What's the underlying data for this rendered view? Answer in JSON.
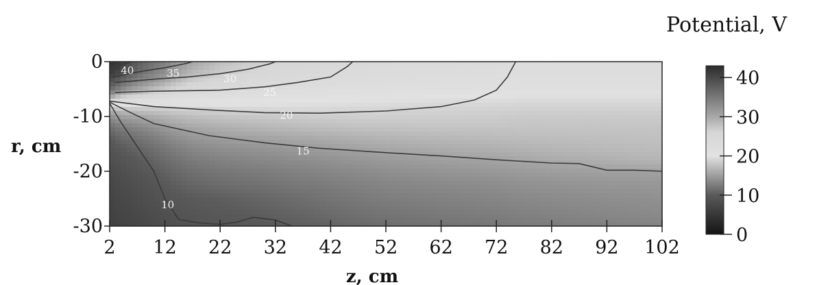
{
  "chart_data": {
    "type": "heatmap",
    "title": "",
    "xlabel": "z, cm",
    "ylabel": "r, cm",
    "xlim": [
      2,
      102
    ],
    "ylim": [
      -30,
      0
    ],
    "x_ticks": [
      2,
      12,
      22,
      32,
      42,
      52,
      62,
      72,
      82,
      92,
      102
    ],
    "y_ticks": [
      0,
      -10,
      -20,
      -30
    ],
    "colorbar": {
      "title": "Potential, V",
      "ticks": [
        40,
        30,
        20,
        10,
        0
      ],
      "range": [
        0,
        43
      ],
      "colormap": [
        {
          "value": 0,
          "color": "#141414"
        },
        {
          "value": 10,
          "color": "#5a5a5a"
        },
        {
          "value": 20,
          "color": "#e2e2e2"
        },
        {
          "value": 26,
          "color": "#d6d6d6"
        },
        {
          "value": 30,
          "color": "#a8a8a8"
        },
        {
          "value": 43,
          "color": "#2b2b2b"
        }
      ]
    },
    "field": {
      "grid_z": [
        2,
        3,
        4,
        6,
        8,
        10,
        12,
        14,
        17,
        22,
        27,
        32,
        37,
        42,
        47,
        52,
        62,
        72,
        76,
        82,
        92,
        102
      ],
      "grid_r": [
        0,
        -1,
        -2,
        -3,
        -4,
        -5,
        -6,
        -7,
        -8,
        -9,
        -10,
        -12,
        -14,
        -16,
        -18,
        -20,
        -22,
        -25,
        -28,
        -30
      ],
      "values": [
        [
          42,
          42,
          41,
          39,
          37,
          35.5,
          34,
          32,
          30,
          28,
          27,
          26,
          25.5,
          25,
          24.5,
          24,
          23.5,
          23,
          22.5,
          22.5,
          22.5,
          22.5
        ],
        [
          41.5,
          41.5,
          40.5,
          38.5,
          36.5,
          35,
          33.5,
          31.5,
          29.5,
          27.5,
          26.5,
          25.5,
          25,
          24.5,
          24,
          23.5,
          23.2,
          22.8,
          22.5,
          22.5,
          22.5,
          22.5
        ],
        [
          41,
          41,
          39.5,
          37.5,
          35.5,
          34,
          32.5,
          30.5,
          28.5,
          27,
          26,
          25,
          24.5,
          24,
          23.5,
          23.2,
          22.8,
          22.5,
          22.3,
          22.3,
          22.3,
          22.3
        ],
        [
          40,
          39.5,
          38,
          36,
          34,
          32.5,
          31,
          29.5,
          27.5,
          26,
          25,
          24.5,
          24,
          23.5,
          23,
          22.8,
          22.4,
          22.1,
          22,
          22,
          22,
          22
        ],
        [
          38.5,
          37.5,
          36,
          34,
          32,
          30.5,
          29,
          27.5,
          26,
          25,
          24.2,
          23.6,
          23.2,
          22.9,
          22.6,
          22.3,
          22,
          21.8,
          21.7,
          21.7,
          21.7,
          21.7
        ],
        [
          36.5,
          35,
          33.5,
          31,
          29.5,
          28,
          27,
          26,
          25,
          24,
          23.3,
          22.8,
          22.4,
          22.1,
          21.9,
          21.7,
          21.5,
          21.3,
          21.2,
          21.2,
          21.2,
          21.2
        ],
        [
          33,
          31,
          29,
          27.5,
          26.5,
          25.5,
          24.8,
          24,
          23.2,
          22.5,
          22,
          21.7,
          21.4,
          21.1,
          20.9,
          20.7,
          20.5,
          20.2,
          20,
          20,
          20,
          20
        ],
        [
          27,
          25.5,
          24.5,
          23.5,
          23,
          22.3,
          21.8,
          21.3,
          21,
          20.7,
          20.5,
          20.3,
          20.2,
          20.1,
          20,
          19.9,
          19.7,
          19.6,
          19.5,
          19.5,
          19.5,
          19.5
        ],
        [
          20,
          20,
          19.8,
          19.6,
          19.5,
          19.4,
          19.5,
          19.6,
          19.7,
          19.8,
          19.8,
          19.8,
          19.7,
          19.6,
          19.5,
          19.4,
          19.2,
          19.1,
          19,
          19,
          19,
          19
        ],
        [
          16,
          16.5,
          17,
          17.3,
          17.5,
          17.7,
          18,
          18.3,
          18.5,
          18.7,
          18.8,
          18.9,
          19,
          19,
          19,
          18.9,
          18.8,
          18.7,
          18.6,
          18.6,
          18.6,
          18.6
        ],
        [
          14,
          14.5,
          15,
          15.5,
          15.8,
          16.2,
          16.6,
          17,
          17.4,
          17.8,
          18,
          18.2,
          18.4,
          18.5,
          18.6,
          18.6,
          18.5,
          18.4,
          18.3,
          18.3,
          18.3,
          18.3
        ],
        [
          11.5,
          12,
          12.5,
          13,
          13.5,
          14,
          14.6,
          15.2,
          15.7,
          16.2,
          16.6,
          16.9,
          17.2,
          17.4,
          17.6,
          17.7,
          17.8,
          17.8,
          17.8,
          17.8,
          17.8,
          17.8
        ],
        [
          10,
          10.5,
          11,
          11.5,
          12,
          12.5,
          13.2,
          13.8,
          14.4,
          14.9,
          15.2,
          15.5,
          15.8,
          16.1,
          16.4,
          16.6,
          16.9,
          17.1,
          17.2,
          17.3,
          17.4,
          17.5
        ],
        [
          9,
          9.4,
          9.9,
          10.5,
          11,
          11.5,
          12.1,
          12.7,
          13.3,
          13.8,
          14.1,
          14.4,
          14.7,
          15,
          15.3,
          15.6,
          16,
          16.3,
          16.5,
          16.7,
          17,
          17.2
        ],
        [
          8.4,
          8.7,
          9.1,
          9.6,
          10.2,
          10.7,
          11.3,
          11.8,
          12.4,
          12.9,
          13.2,
          13.5,
          13.8,
          14.1,
          14.4,
          14.7,
          15.1,
          15.4,
          15.6,
          15.9,
          16.3,
          16.7
        ],
        [
          7.8,
          8.1,
          8.5,
          9,
          9.5,
          10,
          10.6,
          11.1,
          11.6,
          12.1,
          12.4,
          12.7,
          13,
          13.3,
          13.6,
          13.9,
          14.3,
          14.6,
          14.8,
          15,
          15.2,
          15.3
        ],
        [
          7.3,
          7.6,
          8,
          8.4,
          8.9,
          9.4,
          10,
          10.5,
          11,
          11.5,
          11.8,
          12.1,
          12.4,
          12.7,
          13,
          13.3,
          13.6,
          13.9,
          14.1,
          14.3,
          14.5,
          14.6
        ],
        [
          6.9,
          7.2,
          7.5,
          7.9,
          8.3,
          8.7,
          9.2,
          9.6,
          10,
          10.3,
          10.7,
          11.1,
          11.5,
          11.9,
          12.3,
          12.6,
          12.9,
          13.2,
          13.4,
          13.6,
          13.8,
          14
        ],
        [
          6.5,
          6.7,
          7,
          7.3,
          7.7,
          8.1,
          8.5,
          8.9,
          9.3,
          9.7,
          10,
          10.4,
          10.8,
          11.2,
          11.6,
          11.9,
          12.3,
          12.6,
          12.8,
          13,
          13.3,
          13.5
        ],
        [
          6.2,
          6.4,
          6.7,
          7,
          7.4,
          7.8,
          8.2,
          8.6,
          8.9,
          9.3,
          9.6,
          10,
          10.3,
          10.7,
          11.1,
          11.4,
          11.8,
          12.1,
          12.3,
          12.5,
          12.8,
          13
        ]
      ]
    },
    "contours": [
      {
        "level": "40",
        "points": [
          [
            2.5,
            -1.5
          ],
          [
            4,
            -0.6
          ],
          [
            6,
            0
          ]
        ]
      },
      {
        "level": "35",
        "points": [
          [
            2.5,
            -2.8
          ],
          [
            7,
            -1.9
          ],
          [
            12,
            -1.1
          ],
          [
            16,
            -0.3
          ],
          [
            17,
            0
          ]
        ]
      },
      {
        "level": "30",
        "points": [
          [
            3,
            -3.8
          ],
          [
            10,
            -3.2
          ],
          [
            16,
            -2.8
          ],
          [
            22,
            -2.2
          ],
          [
            27,
            -1.4
          ],
          [
            31,
            -0.4
          ],
          [
            32,
            0
          ]
        ]
      },
      {
        "level": "25",
        "points": [
          [
            3,
            -5.6
          ],
          [
            10,
            -5.4
          ],
          [
            16,
            -5.3
          ],
          [
            22,
            -5.2
          ],
          [
            30,
            -4.6
          ],
          [
            36,
            -3.8
          ],
          [
            42,
            -2.8
          ],
          [
            45,
            -0.9
          ],
          [
            46,
            0
          ]
        ]
      },
      {
        "level": "20",
        "points": [
          [
            2,
            -7.2
          ],
          [
            6,
            -7.7
          ],
          [
            10,
            -8.2
          ],
          [
            20,
            -8.8
          ],
          [
            30,
            -9.3
          ],
          [
            40,
            -9.4
          ],
          [
            52,
            -9
          ],
          [
            62,
            -8.2
          ],
          [
            68,
            -7
          ],
          [
            72,
            -5.2
          ],
          [
            74,
            -2.8
          ],
          [
            75.5,
            0
          ]
        ]
      },
      {
        "level": "15",
        "points": [
          [
            2,
            -7.4
          ],
          [
            6,
            -9.4
          ],
          [
            10,
            -11.3
          ],
          [
            20,
            -13.5
          ],
          [
            30,
            -14.8
          ],
          [
            40,
            -15.8
          ],
          [
            52,
            -16.6
          ],
          [
            62,
            -17.2
          ],
          [
            72,
            -17.9
          ],
          [
            82,
            -18.5
          ],
          [
            87,
            -18.6
          ],
          [
            92,
            -19.8
          ],
          [
            97,
            -19.8
          ],
          [
            102,
            -20
          ]
        ]
      },
      {
        "level": "10",
        "points": [
          [
            2,
            -7.6
          ],
          [
            4,
            -11
          ],
          [
            7,
            -15.5
          ],
          [
            10,
            -20
          ],
          [
            12,
            -25
          ],
          [
            14.5,
            -28.8
          ],
          [
            18,
            -29.4
          ],
          [
            22,
            -29.7
          ],
          [
            25,
            -29.3
          ],
          [
            28,
            -28.4
          ],
          [
            32,
            -28.9
          ],
          [
            35,
            -30
          ]
        ]
      }
    ],
    "contour_labels": [
      {
        "text": "40",
        "z": 5.2,
        "r": -1.6
      },
      {
        "text": "35",
        "z": 13.5,
        "r": -2.1
      },
      {
        "text": "30",
        "z": 23.8,
        "r": -3.1
      },
      {
        "text": "25",
        "z": 31,
        "r": -5.6
      },
      {
        "text": "20",
        "z": 34,
        "r": -9.8
      },
      {
        "text": "15",
        "z": 37,
        "r": -16.3
      },
      {
        "text": "10",
        "z": 12.5,
        "r": -26.1
      }
    ]
  }
}
